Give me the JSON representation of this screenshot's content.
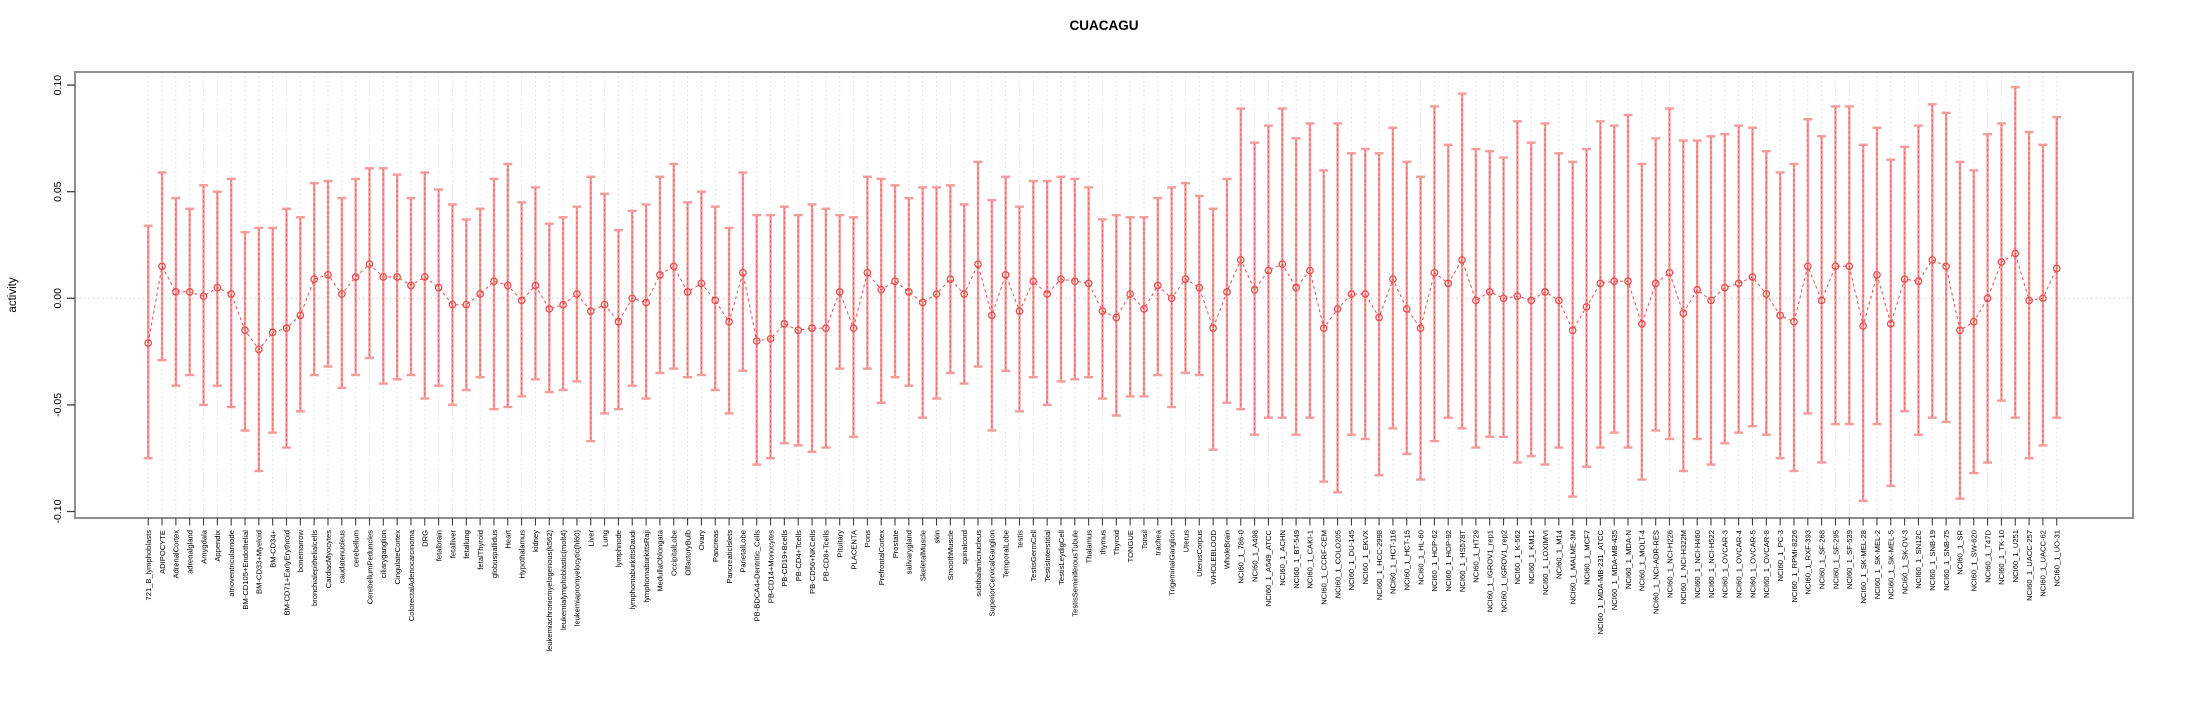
{
  "title": "CUACAGU",
  "y_axis": {
    "label": "activity",
    "tick_labels": [
      "0.10",
      "0.05",
      "0.00",
      "-0.05",
      "-0.10"
    ],
    "tick_values": [
      0.1,
      0.05,
      0.0,
      -0.05,
      -0.1
    ]
  },
  "colors": {
    "error_bar": "#f59b9b",
    "series": "#e84d4d",
    "grid": "#dcdcdc",
    "zero_line": "#cfcfcf",
    "axis_box": "#8f8f8f",
    "tick": "#404040",
    "text": "#000000",
    "background": "#ffffff"
  },
  "chart_data": {
    "type": "line",
    "subtype": "error-bar-plot",
    "title": "CUACAGU",
    "xlabel": "",
    "ylabel": "activity",
    "ylim": [
      -0.105,
      0.105
    ],
    "grid": "vertical-dotted",
    "legend_position": "none",
    "categories": [
      "721_B_lymphoblasts",
      "ADIPOCYTE",
      "AdrenalCortex",
      "adrenalgland",
      "Amygdala",
      "Appendix",
      "atrioventricularnode",
      "BM-CD105+Endothelial",
      "BM-CD33+Myeloid",
      "BM-CD34+",
      "BM-CD71+EarlyErythroid",
      "bonemarrow",
      "bronchialepithelialcells",
      "CardiacMyocytes",
      "caudatenucleus",
      "cerebellum",
      "CerebellumPeduncles",
      "ciliaryganglion",
      "CingulateCortex",
      "ColorectalAdenocarcinoma",
      "DRG",
      "fetalbrain",
      "fetalliver",
      "fetallung",
      "fetalThyroid",
      "globuspallidus",
      "Heart",
      "Hypothalamus",
      "kidney",
      "leukemiachronicmyelogenous(k562)",
      "leukemialymphoblastic(molt4)",
      "leukemiapromyelocytic(hl60)",
      "Liver",
      "Lung",
      "lymphnode",
      "lymphomaburkittsDaudi",
      "lymphomaburkittsRaji",
      "MedullaOblongata",
      "OccipitalLobe",
      "OlfactoryBulb",
      "Ovary",
      "Pancreas",
      "PancreaticIslets",
      "ParietalLobe",
      "PB-BDCA4+Dentritic_Cells",
      "PB-CD14+Monocytes",
      "PB-CD19+Bcells",
      "PB-CD4+Tcells",
      "PB-CD56+NKCells",
      "PB-CD8+Tcells",
      "Pituitary",
      "PLACENTA",
      "Pons",
      "PrefrontalCortex",
      "Prostate",
      "salivarygland",
      "SkeletalMuscle",
      "skin",
      "SmoothMuscle",
      "spinalcord",
      "subthalamicnucleus",
      "SuperiorCervicalGanglion",
      "TemporalLobe",
      "testis",
      "TestisGermCell",
      "TestisInterstitial",
      "TestisLeydigCell",
      "TestisSeminiferousTubule",
      "Thalamus",
      "thymus",
      "Thyroid",
      "TONGUE",
      "Tonsil",
      "trachea",
      "TrigeminalGanglion",
      "Uterus",
      "UterusCorpus",
      "WHOLEBLOOD",
      "WholeBrain",
      "NCI60_1_786-0",
      "NCI60_1_A498",
      "NCI60_1_A549_ATCC",
      "NCI60_1_ACHN",
      "NCI60_1_BT-549",
      "NCI60_1_CAKI-1",
      "NCI60_1_CCRF-CEM",
      "NCI60_1_COLO205",
      "NCI60_1_DU-145",
      "NCI60_1_EKVX",
      "NCI60_1_HCC-2998",
      "NCI60_1_HCT-116",
      "NCI60_1_HCT-15",
      "NCI60_1_HL-60",
      "NCI60_1_HOP-62",
      "NCI60_1_HOP-92",
      "NCI60_1_HS578T",
      "NCI60_1_HT29",
      "NCI60_1_IGROV1_rep1",
      "NCI60_1_IGROV1_rep2",
      "NCI60_1_K-562",
      "NCI60_1_KM12",
      "NCI60_1_LOXIMVI",
      "NCI60_1_M14",
      "NCI60_1_MALME-3M",
      "NCI60_1_MCF7",
      "NCI60_1_MDA-MB-231_ATCC",
      "NCI60_1_MDA-MB-435",
      "NCI60_1_MDA-N",
      "NCI60_1_MOLT-4",
      "NCI60_1_NCI-ADR-RES",
      "NCI60_1_NCI-H226",
      "NCI60_1_NCI-H322M",
      "NCI60_1_NCI-H460",
      "NCI60_1_NCI-H522",
      "NCI60_1_OVCAR-3",
      "NCI60_1_OVCAR-4",
      "NCI60_1_OVCAR-5",
      "NCI60_1_OVCAR-8",
      "NCI60_1_PC-3",
      "NCI60_1_RPMI-8226",
      "NCI60_1_RXF-393",
      "NCI60_1_SF-268",
      "NCI60_1_SF-295",
      "NCI60_1_SF-539",
      "NCI60_1_SK-MEL-28",
      "NCI60_1_SK-MEL-2",
      "NCI60_1_SK-MEL-5",
      "NCI60_1_SK-OV-3",
      "NCI60_1_SN12C",
      "NCI60_1_SNB-19",
      "NCI60_1_SNB-75",
      "NCI60_1_SR",
      "NCI60_1_SW-620",
      "NCI60_1_T47D",
      "NCI60_1_TK-10",
      "NCI60_1_U251",
      "NCI60_1_UACC-257",
      "NCI60_1_UACC-62",
      "NCI60_1_UO-31"
    ],
    "series": [
      {
        "name": "activity",
        "values": [
          -0.021,
          0.015,
          0.003,
          0.003,
          0.001,
          0.005,
          0.002,
          -0.015,
          -0.024,
          -0.016,
          -0.014,
          -0.008,
          0.009,
          0.011,
          0.002,
          0.01,
          0.016,
          0.01,
          0.01,
          0.006,
          0.01,
          0.005,
          -0.003,
          -0.003,
          0.002,
          0.008,
          0.006,
          -0.001,
          0.006,
          -0.005,
          -0.003,
          0.002,
          -0.006,
          -0.003,
          -0.011,
          0.0,
          -0.002,
          0.011,
          0.015,
          0.003,
          0.007,
          -0.001,
          -0.011,
          0.012,
          -0.02,
          -0.019,
          -0.012,
          -0.015,
          -0.014,
          -0.014,
          0.003,
          -0.014,
          0.012,
          0.004,
          0.008,
          0.003,
          -0.002,
          0.002,
          0.009,
          0.002,
          0.016,
          -0.008,
          0.011,
          -0.006,
          0.008,
          0.002,
          0.009,
          0.008,
          0.007,
          -0.006,
          -0.009,
          0.002,
          -0.005,
          0.006,
          0.0,
          0.009,
          0.005,
          -0.014,
          0.003,
          0.018,
          0.004,
          0.013,
          0.016,
          0.005,
          0.013,
          -0.014,
          -0.005,
          0.002,
          0.002,
          -0.009,
          0.009,
          -0.005,
          -0.014,
          0.012,
          0.007,
          0.018,
          -0.001,
          0.003,
          0.0,
          0.001,
          -0.001,
          0.003,
          -0.001,
          -0.015,
          -0.004,
          0.007,
          0.008,
          0.008,
          -0.012,
          0.007,
          0.012,
          -0.007,
          0.004,
          -0.001,
          0.005,
          0.007,
          0.01,
          0.002,
          -0.008,
          -0.011,
          0.015,
          -0.001,
          0.015,
          0.015,
          -0.013,
          0.011,
          -0.012,
          0.009,
          0.008,
          0.018,
          0.015,
          -0.015,
          -0.011,
          0.0,
          0.017,
          0.021,
          -0.001,
          0.0,
          0.014
        ]
      }
    ],
    "error_low": [
      -0.075,
      -0.029,
      -0.041,
      -0.036,
      -0.05,
      -0.041,
      -0.051,
      -0.062,
      -0.081,
      -0.063,
      -0.07,
      -0.053,
      -0.036,
      -0.032,
      -0.042,
      -0.036,
      -0.028,
      -0.04,
      -0.038,
      -0.036,
      -0.047,
      -0.041,
      -0.05,
      -0.043,
      -0.037,
      -0.052,
      -0.051,
      -0.046,
      -0.038,
      -0.044,
      -0.043,
      -0.039,
      -0.067,
      -0.054,
      -0.052,
      -0.041,
      -0.047,
      -0.035,
      -0.033,
      -0.037,
      -0.036,
      -0.043,
      -0.054,
      -0.034,
      -0.078,
      -0.075,
      -0.068,
      -0.069,
      -0.072,
      -0.07,
      -0.033,
      -0.065,
      -0.033,
      -0.049,
      -0.037,
      -0.041,
      -0.056,
      -0.047,
      -0.035,
      -0.04,
      -0.032,
      -0.062,
      -0.034,
      -0.053,
      -0.037,
      -0.05,
      -0.039,
      -0.038,
      -0.037,
      -0.047,
      -0.055,
      -0.046,
      -0.046,
      -0.036,
      -0.051,
      -0.035,
      -0.036,
      -0.071,
      -0.049,
      -0.052,
      -0.064,
      -0.056,
      -0.056,
      -0.064,
      -0.056,
      -0.086,
      -0.091,
      -0.064,
      -0.066,
      -0.083,
      -0.061,
      -0.073,
      -0.085,
      -0.067,
      -0.056,
      -0.061,
      -0.07,
      -0.065,
      -0.065,
      -0.077,
      -0.074,
      -0.078,
      -0.07,
      -0.093,
      -0.079,
      -0.07,
      -0.063,
      -0.07,
      -0.085,
      -0.062,
      -0.066,
      -0.081,
      -0.066,
      -0.078,
      -0.068,
      -0.063,
      -0.06,
      -0.064,
      -0.075,
      -0.081,
      -0.054,
      -0.077,
      -0.059,
      -0.059,
      -0.095,
      -0.059,
      -0.088,
      -0.053,
      -0.064,
      -0.056,
      -0.058,
      -0.094,
      -0.082,
      -0.077,
      -0.048,
      -0.056,
      -0.075,
      -0.069,
      -0.056
    ],
    "error_high": [
      0.034,
      0.059,
      0.047,
      0.042,
      0.053,
      0.05,
      0.056,
      0.031,
      0.033,
      0.033,
      0.042,
      0.038,
      0.054,
      0.055,
      0.047,
      0.056,
      0.061,
      0.061,
      0.058,
      0.047,
      0.059,
      0.051,
      0.044,
      0.037,
      0.042,
      0.056,
      0.063,
      0.045,
      0.052,
      0.035,
      0.038,
      0.043,
      0.057,
      0.049,
      0.032,
      0.041,
      0.044,
      0.057,
      0.063,
      0.045,
      0.05,
      0.043,
      0.033,
      0.059,
      0.039,
      0.039,
      0.043,
      0.039,
      0.044,
      0.042,
      0.039,
      0.038,
      0.057,
      0.056,
      0.053,
      0.047,
      0.052,
      0.052,
      0.053,
      0.044,
      0.064,
      0.046,
      0.057,
      0.043,
      0.055,
      0.055,
      0.057,
      0.056,
      0.052,
      0.037,
      0.039,
      0.038,
      0.038,
      0.047,
      0.052,
      0.054,
      0.048,
      0.042,
      0.056,
      0.089,
      0.073,
      0.081,
      0.089,
      0.075,
      0.082,
      0.06,
      0.082,
      0.068,
      0.07,
      0.068,
      0.08,
      0.064,
      0.057,
      0.09,
      0.072,
      0.096,
      0.07,
      0.069,
      0.066,
      0.083,
      0.073,
      0.082,
      0.068,
      0.064,
      0.07,
      0.083,
      0.081,
      0.086,
      0.063,
      0.075,
      0.089,
      0.074,
      0.074,
      0.076,
      0.077,
      0.081,
      0.08,
      0.069,
      0.059,
      0.063,
      0.084,
      0.076,
      0.09,
      0.09,
      0.072,
      0.08,
      0.065,
      0.071,
      0.081,
      0.091,
      0.087,
      0.064,
      0.06,
      0.077,
      0.082,
      0.099,
      0.078,
      0.072,
      0.085
    ]
  }
}
